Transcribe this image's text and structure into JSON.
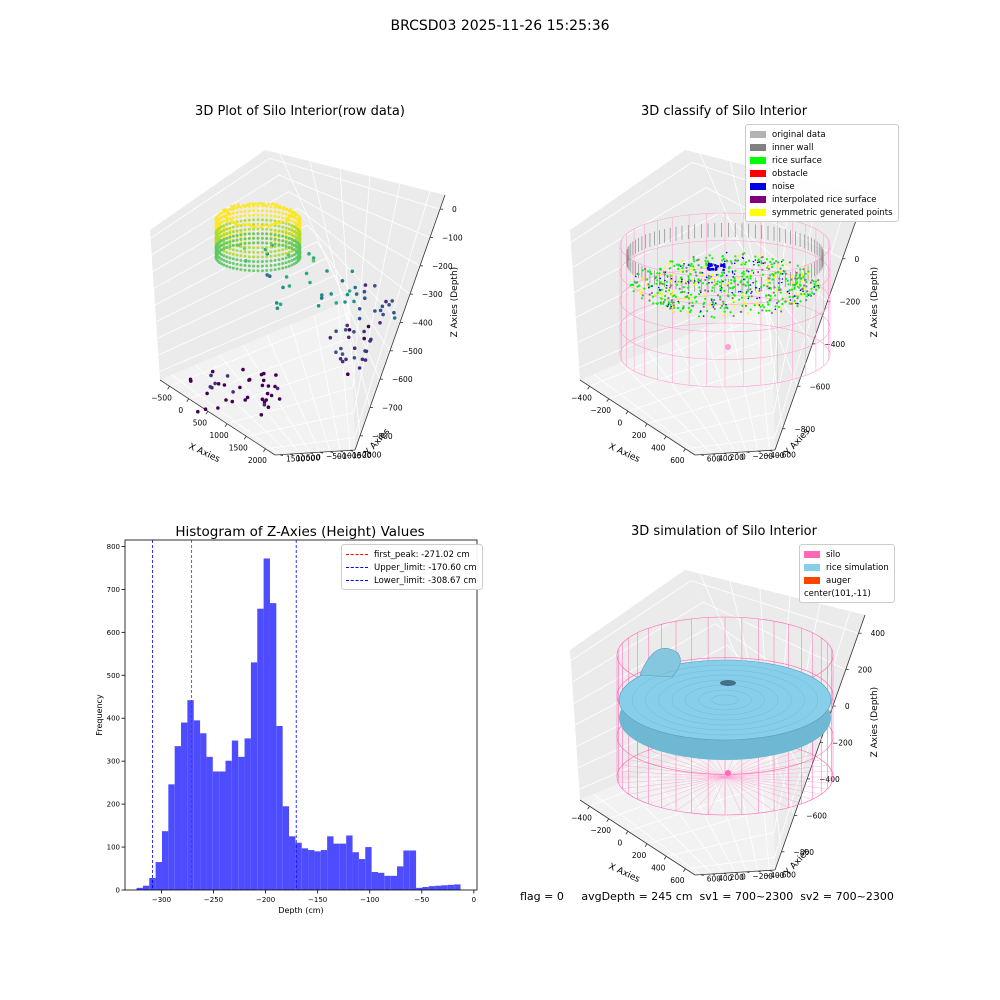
{
  "figure": {
    "suptitle": "BRCSD03 2025-11-26 15:25:36",
    "footer": "flag = 0     avgDepth = 245 cm  sv1 = 700~2300  sv2 = 700~2300"
  },
  "colors": {
    "hist_bar": "#4d4dff",
    "first_peak_line": "#ff0000",
    "limit_lines": "#0000ff",
    "pane_floor": "#f2f2f2",
    "pane_wall": "#ebebeb"
  },
  "chart_data": [
    {
      "id": "raw",
      "type": "scatter3d",
      "title": "3D Plot of Silo Interior(row data)",
      "xlabel": "X Axies",
      "ylabel": "Y Axies",
      "zlabel": "Z Axies (Depth)",
      "x_ticks": [
        "−500",
        "0",
        "500",
        "1000",
        "1500",
        "2000"
      ],
      "y_ticks": [
        "1500",
        "1000",
        "500",
        "0",
        "−500",
        "−1000",
        "−1500",
        "−2000"
      ],
      "z_ticks": [
        "0",
        "−100",
        "−200",
        "−300",
        "−400",
        "−500",
        "−600",
        "−700",
        "−800"
      ],
      "xlim": [
        -600,
        2300
      ],
      "ylim": [
        -2000,
        1600
      ],
      "zlim": [
        -850,
        0
      ],
      "colormap": "viridis"
    },
    {
      "id": "classify",
      "type": "scatter3d",
      "title": "3D classify of Silo Interior",
      "xlabel": "X Axies",
      "ylabel": "Y Axies",
      "zlabel": "Z Axies (Depth)",
      "x_ticks": [
        "−400",
        "−200",
        "0",
        "200",
        "400",
        "600"
      ],
      "y_ticks": [
        "600",
        "400",
        "200",
        "0",
        "−200",
        "−400",
        "−600"
      ],
      "z_ticks": [
        "200",
        "0",
        "−200",
        "−400",
        "−600",
        "−800"
      ],
      "xlim": [
        -500,
        700
      ],
      "ylim": [
        -650,
        650
      ],
      "zlim": [
        -900,
        250
      ],
      "legend": [
        {
          "label": "original data",
          "color": "#b3b3b3"
        },
        {
          "label": "inner wall",
          "color": "#808080"
        },
        {
          "label": "rice surface",
          "color": "#00ff00"
        },
        {
          "label": "obstacle",
          "color": "#ff0000"
        },
        {
          "label": "noise",
          "color": "#0000e6"
        },
        {
          "label": "interpolated rice surface",
          "color": "#800080"
        },
        {
          "label": "symmetric generated points",
          "color": "#ffff00"
        }
      ]
    },
    {
      "id": "hist",
      "type": "bar",
      "title": "Histogram of Z-Axies (Height) Values",
      "xlabel": "Depth (cm)",
      "ylabel": "Frequency",
      "xlim": [
        -335,
        3
      ],
      "ylim": [
        0,
        815
      ],
      "x_ticks": [
        -300,
        -250,
        -200,
        -150,
        -100,
        -50,
        0
      ],
      "y_ticks": [
        0,
        100,
        200,
        300,
        400,
        500,
        600,
        700,
        800
      ],
      "bin_width": 6.1,
      "bin_starts": [
        -323.9,
        -317.8,
        -311.7,
        -305.6,
        -299.5,
        -293.4,
        -287.3,
        -281.2,
        -275.1,
        -269.0,
        -262.9,
        -256.8,
        -250.7,
        -244.6,
        -238.5,
        -232.4,
        -226.3,
        -220.2,
        -214.1,
        -208.0,
        -201.9,
        -195.8,
        -189.7,
        -183.6,
        -177.5,
        -171.4,
        -165.3,
        -159.2,
        -153.1,
        -147.0,
        -140.9,
        -134.8,
        -128.7,
        -122.6,
        -116.5,
        -110.4,
        -104.3,
        -98.2,
        -92.1,
        -86.0,
        -79.9,
        -73.8,
        -67.7,
        -61.6,
        -55.5,
        -49.4,
        -43.3,
        -37.2,
        -31.1,
        -25.0,
        -18.9
      ],
      "values": [
        5,
        10,
        28,
        65,
        137,
        246,
        335,
        390,
        442,
        395,
        365,
        310,
        276,
        276,
        301,
        348,
        310,
        353,
        530,
        655,
        772,
        668,
        382,
        195,
        125,
        110,
        97,
        93,
        90,
        93,
        125,
        108,
        108,
        127,
        88,
        72,
        100,
        42,
        40,
        33,
        33,
        55,
        92,
        92,
        5,
        7,
        9,
        10,
        11,
        12,
        13
      ],
      "vlines": [
        {
          "label": "first_peak: -271.02 cm",
          "x": -271.02,
          "color": "#ff0000"
        },
        {
          "label": "Upper_limit: -170.60 cm",
          "x": -170.6,
          "color": "#0000ff"
        },
        {
          "label": "Lower_limit: -308.67 cm",
          "x": -308.67,
          "color": "#0000ff"
        }
      ],
      "legend_position": "upper right",
      "grid": false
    },
    {
      "id": "sim",
      "type": "surface3d",
      "title": "3D simulation of Silo Interior",
      "xlabel": "X Axies",
      "ylabel": "Y Axies",
      "zlabel": "Z Axies (Depth)",
      "x_ticks": [
        "−400",
        "−200",
        "0",
        "200",
        "400",
        "600"
      ],
      "y_ticks": [
        "600",
        "400",
        "200",
        "0",
        "−200",
        "−400",
        "−600"
      ],
      "z_ticks": [
        "400",
        "200",
        "0",
        "−200",
        "−400",
        "−600",
        "−800"
      ],
      "xlim": [
        -500,
        700
      ],
      "ylim": [
        -650,
        650
      ],
      "zlim": [
        -900,
        450
      ],
      "legend": [
        {
          "label": "silo",
          "color": "#ff69b4"
        },
        {
          "label": "rice simulation",
          "color": "#87ceeb"
        },
        {
          "label": "auger",
          "color": "#ff4500"
        },
        {
          "label": "center(101,-11)",
          "color": ""
        }
      ]
    }
  ]
}
